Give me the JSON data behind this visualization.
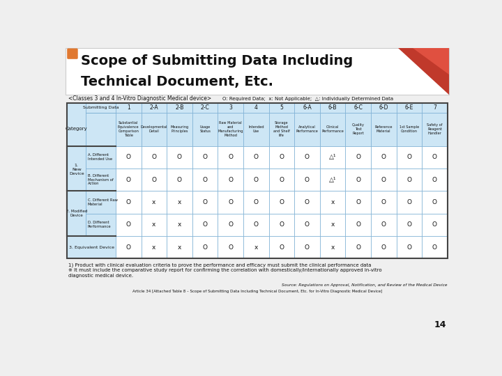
{
  "title_line1": "Scope of Submitting Data Including",
  "title_line2": "Technical Document, Etc.",
  "subtitle": "<Classes 3 and 4 In-Vitro Diagnostic Medical device>",
  "legend": "O: Required Data;  x: Not Applicable;  △: Individually Determined Data",
  "col_headers": [
    "1",
    "2-A",
    "2-B",
    "2-C",
    "3",
    "4",
    "5",
    "6-A",
    "6-B",
    "6-C",
    "6-D",
    "6-E",
    "7"
  ],
  "col_subheaders": [
    "Substantial\nEquivalence\nComparison\nTable",
    "Developmental\nDetail",
    "Measuring\nPrinciples",
    "Usage\nStatus",
    "Raw Material\nand\nManufacturing\nMethod",
    "Intended\nUse",
    "Storage\nMethod\nand Shelf\nlife",
    "Analytical\nPerformance",
    "Clinical\nPerformance",
    "Quality\nTest\nReport",
    "Reference\nMaterial",
    "1st Sample\nCondition",
    "Safety of\nReagent\nHandler"
  ],
  "row_sub_labels": [
    "A. Different\nIntended Use",
    "B. Different\nMechanism of\nAction",
    "C. Different Raw\nMaterial",
    "D. Different\nPerformance",
    ""
  ],
  "data": [
    [
      "O",
      "O",
      "O",
      "O",
      "O",
      "O",
      "O",
      "O",
      "△¹",
      "O",
      "O",
      "O",
      "O"
    ],
    [
      "O",
      "O",
      "O",
      "O",
      "O",
      "O",
      "O",
      "O",
      "△¹",
      "O",
      "O",
      "O",
      "O"
    ],
    [
      "O",
      "x",
      "x",
      "O",
      "O",
      "O",
      "O",
      "O",
      "x",
      "O",
      "O",
      "O",
      "O"
    ],
    [
      "O",
      "x",
      "x",
      "O",
      "O",
      "O",
      "O",
      "O",
      "x",
      "O",
      "O",
      "O",
      "O"
    ],
    [
      "O",
      "x",
      "x",
      "O",
      "O",
      "x",
      "O",
      "O",
      "x",
      "O",
      "O",
      "O",
      "O"
    ]
  ],
  "footnote1": "1) Product with clinical evaluation criteria to prove the performance and efficacy must submit the clinical performance data",
  "footnote2": "※ It must include the comparative study report for confirming the correlation with domestically/internationally approved in-vitro",
  "footnote3": "diagnostic medical device.",
  "source": "Source: Regulations on Approval, Notification, and Review of the Medical Device",
  "article": "Article 34 [Attached Table 8 – Scope of Submitting Data Including Technical Document, Etc. for In-Vitro Diagnostic Medical Device]",
  "page": "14",
  "bg_color": "#efefef",
  "title_bg": "#ffffff",
  "header_blue": "#cde6f5",
  "cell_white": "#ffffff",
  "border_dark": "#444444",
  "border_light": "#7bafd4",
  "orange_icon": "#e07830",
  "red_tri": "#c0392b",
  "red_tri2": "#e05040"
}
